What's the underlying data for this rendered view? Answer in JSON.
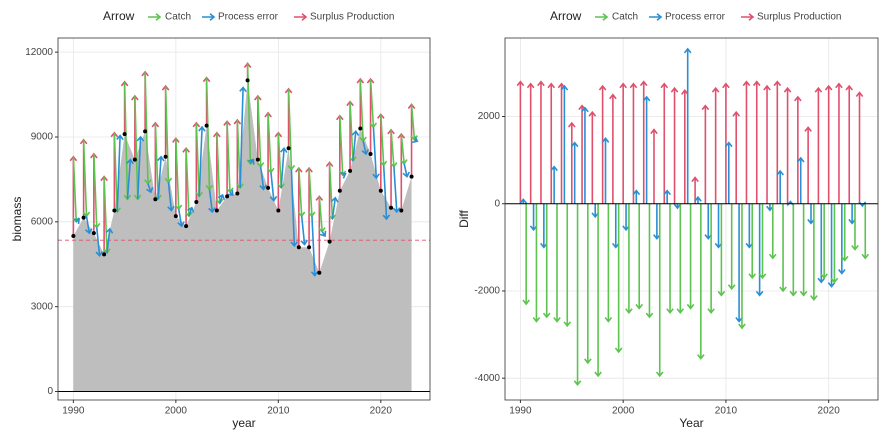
{
  "chart_data": [
    {
      "type": "arrow-biomass",
      "x_label": "year",
      "y_label": "biomass",
      "legend_title": "Arrow",
      "x": [
        1990,
        1991,
        1992,
        1993,
        1994,
        1995,
        1996,
        1997,
        1998,
        1999,
        2000,
        2001,
        2002,
        2003,
        2004,
        2005,
        2006,
        2007,
        2008,
        2009,
        2010,
        2011,
        2012,
        2013,
        2014,
        2015,
        2016,
        2017,
        2018,
        2019,
        2020,
        2021,
        2022,
        2023
      ],
      "values": [
        5500,
        6150,
        5600,
        4850,
        6400,
        9100,
        8200,
        9200,
        6800,
        8300,
        6200,
        5850,
        6700,
        9400,
        6400,
        6900,
        7000,
        11000,
        8200,
        7200,
        6400,
        8600,
        5100,
        5100,
        4200,
        5300,
        7100,
        7800,
        9300,
        8400,
        7100,
        6500,
        6400,
        7600
      ],
      "area_color": "#bebebe",
      "point_color": "#000000",
      "hline": 5350,
      "hline_color": "#e0506d",
      "xlim": [
        1988.5,
        2024.8
      ],
      "xticks": [
        1990,
        2000,
        2010,
        2020
      ],
      "ylim": [
        -300,
        12500
      ],
      "yticks": [
        0,
        3000,
        6000,
        9000,
        12000
      ],
      "grid": true
    },
    {
      "type": "arrow-diff",
      "x_label": "Year",
      "y_label": "Diff",
      "legend_title": "Arrow",
      "x": [
        1990,
        1991,
        1992,
        1993,
        1994,
        1995,
        1996,
        1997,
        1998,
        1999,
        2000,
        2001,
        2002,
        2003,
        2004,
        2005,
        2006,
        2007,
        2008,
        2009,
        2010,
        2011,
        2012,
        2013,
        2014,
        2015,
        2016,
        2017,
        2018,
        2019,
        2020,
        2021,
        2022,
        2023
      ],
      "series": [
        {
          "name": "Catch",
          "color": "#5dc44f",
          "values": [
            -2300,
            -2700,
            -2600,
            -2700,
            -2800,
            -4150,
            -3650,
            -3950,
            -2700,
            -3400,
            -2500,
            -2400,
            -2600,
            -3950,
            -2500,
            -2500,
            -2400,
            -3550,
            -2500,
            -2100,
            -1950,
            -2850,
            -1700,
            -1700,
            -1250,
            -2000,
            -2100,
            -2100,
            -2200,
            -1700,
            -1800,
            -1300,
            -1050,
            -1250
          ]
        },
        {
          "name": "Process error",
          "color": "#2a8fd4",
          "values": [
            100,
            -600,
            -1000,
            850,
            2700,
            1400,
            2200,
            -300,
            1500,
            -1000,
            -600,
            300,
            2450,
            -800,
            300,
            -100,
            3550,
            150,
            -800,
            -1000,
            1400,
            -2700,
            -1000,
            -2100,
            -150,
            750,
            50,
            1050,
            -450,
            -1800,
            -1900,
            -1600,
            -450,
            -50
          ]
        },
        {
          "name": "Surplus Production",
          "color": "#e0506d",
          "values": [
            2800,
            2750,
            2800,
            2750,
            2750,
            1850,
            2250,
            2100,
            2700,
            2500,
            2750,
            2750,
            2800,
            1700,
            2750,
            2650,
            2600,
            600,
            2250,
            2650,
            2750,
            2100,
            2800,
            2800,
            2700,
            2800,
            2650,
            2450,
            1750,
            2650,
            2700,
            2750,
            2700,
            2550
          ]
        }
      ],
      "xlim": [
        1988.5,
        2024.8
      ],
      "xticks": [
        1990,
        2000,
        2010,
        2020
      ],
      "ylim": [
        -4500,
        3800
      ],
      "yticks": [
        -4000,
        -2000,
        0,
        2000
      ],
      "grid": true
    }
  ]
}
